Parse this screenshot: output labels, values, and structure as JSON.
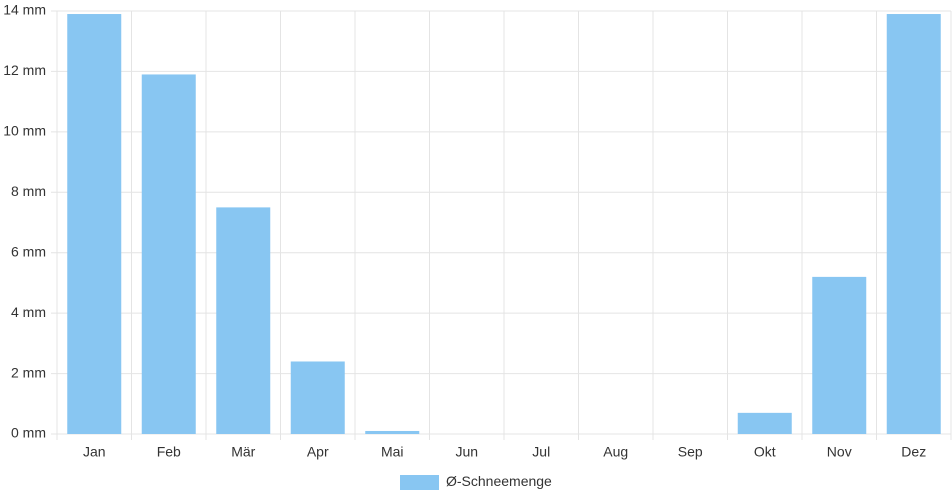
{
  "chart_data": {
    "type": "bar",
    "categories": [
      "Jan",
      "Feb",
      "Mär",
      "Apr",
      "Mai",
      "Jun",
      "Jul",
      "Aug",
      "Sep",
      "Okt",
      "Nov",
      "Dez"
    ],
    "series": [
      {
        "name": "Ø-Schneemenge",
        "color": "#88c6f2",
        "values": [
          13.9,
          11.9,
          7.5,
          2.4,
          0.1,
          0,
          0,
          0,
          0,
          0.7,
          5.2,
          13.9
        ]
      }
    ],
    "ylim": [
      0,
      14
    ],
    "yticks": [
      {
        "value": 0,
        "label": "0 mm"
      },
      {
        "value": 2,
        "label": "2 mm"
      },
      {
        "value": 4,
        "label": "4 mm"
      },
      {
        "value": 6,
        "label": "6 mm"
      },
      {
        "value": 8,
        "label": "8 mm"
      },
      {
        "value": 10,
        "label": "10 mm"
      },
      {
        "value": 12,
        "label": "12 mm"
      },
      {
        "value": 14,
        "label": "14 mm"
      }
    ],
    "grid": true
  }
}
